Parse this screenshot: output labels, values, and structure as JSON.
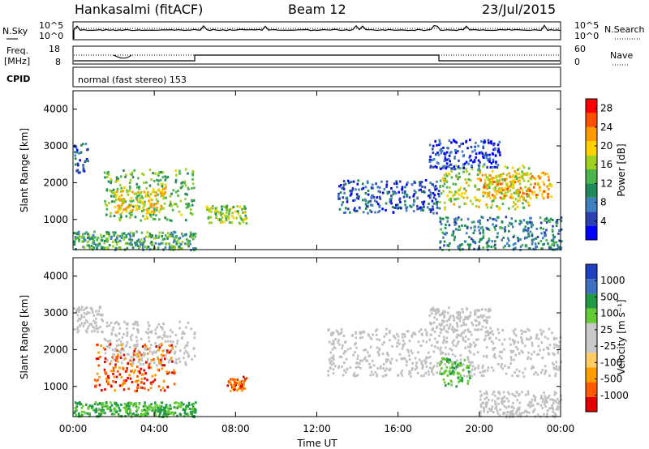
{
  "header": {
    "station": "Hankasalmi (fitACF)",
    "beam": "Beam 12",
    "date": "23/Jul/2015"
  },
  "panels": {
    "noise": {
      "left_label": "N.Sky",
      "right_label": "N.Search",
      "left_ticks": [
        "10^5",
        "10^0"
      ],
      "right_ticks": [
        "10^5",
        "10^0"
      ]
    },
    "freq": {
      "left_label_1": "Freq.",
      "left_label_2": "[MHz]",
      "right_label": "Nave",
      "left_ticks": [
        "18",
        "8"
      ],
      "right_ticks": [
        "60",
        "0"
      ]
    },
    "cpid": {
      "label": "CPID",
      "text": "normal (fast stereo) 153"
    }
  },
  "colors": {
    "power_scale": [
      "#0000ff",
      "#2a3fb0",
      "#3f7fbf",
      "#1f8a5a",
      "#4db34d",
      "#a0d020",
      "#ffd000",
      "#ff9900",
      "#ff5000",
      "#ff0000"
    ],
    "velocity_scale": [
      "#e00000",
      "#ff5a00",
      "#ff9c00",
      "#ffcc66",
      "#c8c8c8",
      "#c8c8c8",
      "#66cc33",
      "#229944",
      "#3f6fbf",
      "#1f3fbf"
    ],
    "ground_scatter": "#c0c0c0"
  },
  "chart_data": [
    {
      "type": "heatmap",
      "name": "power",
      "ylabel": "Slant Range [km]",
      "xlabel": "",
      "ylim": [
        180,
        4500
      ],
      "xlim": [
        "00:00",
        "24:00"
      ],
      "yticks": [
        "1000",
        "2000",
        "3000",
        "4000"
      ],
      "colorbar": {
        "label": "Power [dB]",
        "ticks": [
          "4",
          "8",
          "12",
          "16",
          "20",
          "24",
          "28"
        ],
        "range": [
          0,
          30
        ]
      },
      "regions": [
        {
          "t": [
            0.0,
            0.7
          ],
          "r": [
            2300,
            3100
          ],
          "level": 7
        },
        {
          "t": [
            1.5,
            6.0
          ],
          "r": [
            1000,
            2400
          ],
          "level": 14
        },
        {
          "t": [
            2.0,
            4.5
          ],
          "r": [
            1200,
            1900
          ],
          "level": 19
        },
        {
          "t": [
            0.0,
            6.0
          ],
          "r": [
            200,
            700
          ],
          "level": 12
        },
        {
          "t": [
            6.5,
            8.5
          ],
          "r": [
            900,
            1400
          ],
          "level": 15
        },
        {
          "t": [
            13.0,
            18.0
          ],
          "r": [
            1200,
            2100
          ],
          "level": 6
        },
        {
          "t": [
            18.0,
            22.5
          ],
          "r": [
            1300,
            2500
          ],
          "level": 17
        },
        {
          "t": [
            20.0,
            23.5
          ],
          "r": [
            1600,
            2300
          ],
          "level": 21
        },
        {
          "t": [
            18.0,
            24.0
          ],
          "r": [
            200,
            1100
          ],
          "level": 9
        },
        {
          "t": [
            17.5,
            21.0
          ],
          "r": [
            2400,
            3200
          ],
          "level": 4
        }
      ]
    },
    {
      "type": "heatmap",
      "name": "velocity",
      "ylabel": "Slant Range [km]",
      "xlabel": "Time UT",
      "ylim": [
        180,
        4500
      ],
      "xlim": [
        "00:00",
        "24:00"
      ],
      "xticks": [
        "00:00",
        "04:00",
        "08:00",
        "12:00",
        "16:00",
        "20:00",
        "00:00"
      ],
      "yticks": [
        "1000",
        "2000",
        "3000",
        "4000"
      ],
      "colorbar": {
        "label": "Velocity [m s⁻¹]",
        "ticks": [
          "1000",
          "500",
          "100",
          "25",
          "-25",
          "-100",
          "-500",
          "-1000"
        ]
      },
      "regions": [
        {
          "t": [
            0.0,
            1.5
          ],
          "r": [
            2500,
            3200
          ],
          "kind": "ground"
        },
        {
          "t": [
            1.5,
            6.0
          ],
          "r": [
            1600,
            2800
          ],
          "kind": "ground"
        },
        {
          "t": [
            1.0,
            5.0
          ],
          "r": [
            900,
            2200
          ],
          "kind": "negative"
        },
        {
          "t": [
            7.5,
            8.5
          ],
          "r": [
            900,
            1300
          ],
          "kind": "negative"
        },
        {
          "t": [
            0.0,
            6.0
          ],
          "r": [
            200,
            600
          ],
          "kind": "positive"
        },
        {
          "t": [
            12.5,
            24.0
          ],
          "r": [
            1300,
            2600
          ],
          "kind": "ground"
        },
        {
          "t": [
            17.5,
            20.5
          ],
          "r": [
            2500,
            3200
          ],
          "kind": "ground"
        },
        {
          "t": [
            18.0,
            19.5
          ],
          "r": [
            1000,
            1800
          ],
          "kind": "positive"
        },
        {
          "t": [
            20.0,
            24.0
          ],
          "r": [
            200,
            900
          ],
          "kind": "ground"
        }
      ]
    }
  ]
}
